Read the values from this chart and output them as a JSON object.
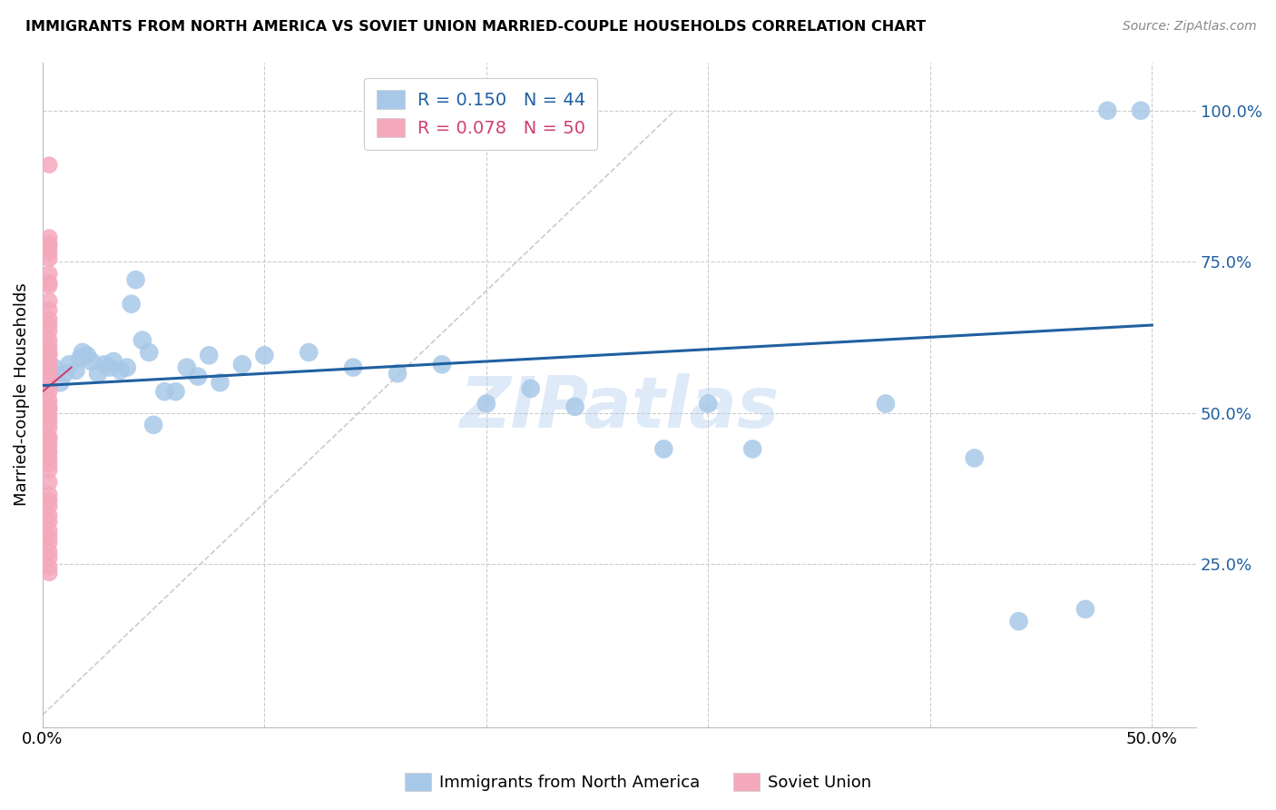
{
  "title": "IMMIGRANTS FROM NORTH AMERICA VS SOVIET UNION MARRIED-COUPLE HOUSEHOLDS CORRELATION CHART",
  "source": "Source: ZipAtlas.com",
  "ylabel": "Married-couple Households",
  "yticks": [
    "100.0%",
    "75.0%",
    "50.0%",
    "25.0%"
  ],
  "ytick_vals": [
    1.0,
    0.75,
    0.5,
    0.25
  ],
  "xlim": [
    0.0,
    0.52
  ],
  "ylim": [
    -0.02,
    1.08
  ],
  "blue_color": "#a8c8e8",
  "pink_color": "#f4a8bc",
  "blue_line_color": "#2060a0",
  "pink_line_color": "#d04070",
  "diagonal_color": "#cccccc",
  "legend_blue_label": "R = 0.150   N = 44",
  "legend_pink_label": "R = 0.078   N = 50",
  "legend_label_na": "Immigrants from North America",
  "legend_label_su": "Soviet Union",
  "watermark": "ZIPatlas",
  "blue_scatter_x": [
    0.005,
    0.008,
    0.01,
    0.012,
    0.015,
    0.017,
    0.018,
    0.02,
    0.022,
    0.025,
    0.028,
    0.03,
    0.032,
    0.035,
    0.038,
    0.04,
    0.042,
    0.045,
    0.048,
    0.05,
    0.055,
    0.06,
    0.065,
    0.07,
    0.075,
    0.08,
    0.09,
    0.1,
    0.12,
    0.14,
    0.16,
    0.18,
    0.2,
    0.22,
    0.24,
    0.28,
    0.3,
    0.32,
    0.38,
    0.42,
    0.44,
    0.47,
    0.48,
    0.495
  ],
  "blue_scatter_y": [
    0.575,
    0.55,
    0.565,
    0.58,
    0.57,
    0.59,
    0.6,
    0.595,
    0.585,
    0.565,
    0.58,
    0.575,
    0.585,
    0.57,
    0.575,
    0.68,
    0.72,
    0.62,
    0.6,
    0.48,
    0.535,
    0.535,
    0.575,
    0.56,
    0.595,
    0.55,
    0.58,
    0.595,
    0.6,
    0.575,
    0.565,
    0.58,
    0.515,
    0.54,
    0.51,
    0.44,
    0.515,
    0.44,
    0.515,
    0.425,
    0.155,
    0.175,
    1.0,
    1.0
  ],
  "pink_scatter_x": [
    0.003,
    0.003,
    0.003,
    0.003,
    0.003,
    0.003,
    0.003,
    0.003,
    0.003,
    0.003,
    0.003,
    0.003,
    0.003,
    0.003,
    0.003,
    0.003,
    0.003,
    0.003,
    0.003,
    0.003,
    0.003,
    0.003,
    0.003,
    0.003,
    0.003,
    0.003,
    0.003,
    0.003,
    0.003,
    0.003,
    0.003,
    0.003,
    0.003,
    0.003,
    0.003,
    0.003,
    0.003,
    0.003,
    0.003,
    0.003,
    0.003,
    0.003,
    0.003,
    0.003,
    0.003,
    0.003,
    0.003,
    0.003,
    0.003,
    0.003
  ],
  "pink_scatter_y": [
    0.91,
    0.79,
    0.78,
    0.775,
    0.765,
    0.755,
    0.73,
    0.715,
    0.71,
    0.685,
    0.67,
    0.655,
    0.645,
    0.635,
    0.62,
    0.61,
    0.6,
    0.595,
    0.585,
    0.575,
    0.565,
    0.555,
    0.545,
    0.535,
    0.52,
    0.51,
    0.505,
    0.495,
    0.485,
    0.475,
    0.46,
    0.455,
    0.445,
    0.435,
    0.425,
    0.415,
    0.405,
    0.385,
    0.365,
    0.355,
    0.345,
    0.33,
    0.32,
    0.305,
    0.295,
    0.285,
    0.27,
    0.26,
    0.245,
    0.235
  ],
  "blue_line_x": [
    0.0,
    0.5
  ],
  "blue_line_y": [
    0.545,
    0.645
  ],
  "pink_line_x": [
    0.0,
    0.013
  ],
  "pink_line_y": [
    0.535,
    0.575
  ],
  "diag_line_x": [
    0.0,
    0.285
  ],
  "diag_line_y": [
    0.0,
    1.0
  ],
  "xtick_positions": [
    0.0,
    0.1,
    0.2,
    0.3,
    0.4,
    0.5
  ],
  "xtick_labels": [
    "0.0%",
    "",
    "",
    "",
    "",
    "50.0%"
  ]
}
